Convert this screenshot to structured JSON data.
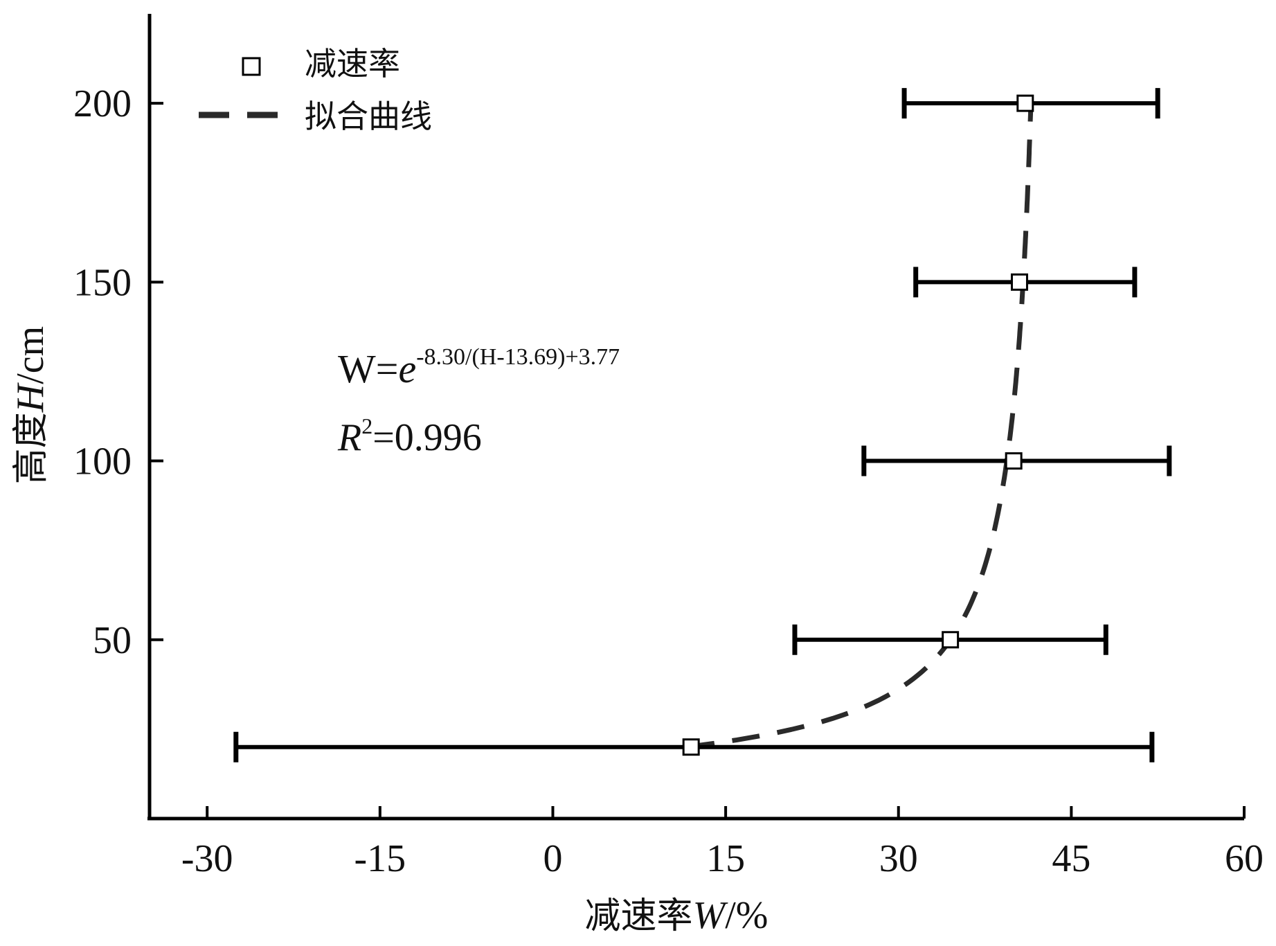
{
  "chart_data": {
    "type": "scatter",
    "title": "",
    "xlabel": "减速率W/%",
    "ylabel": "高度H/cm",
    "xlabel_parts": {
      "cjk": "减速率",
      "var": "W",
      "unit": "/%"
    },
    "ylabel_parts": {
      "cjk": "高度",
      "var": "H",
      "unit": "/cm"
    },
    "xlim": [
      -35,
      60
    ],
    "ylim": [
      0,
      225
    ],
    "x_ticks": [
      -30,
      -15,
      0,
      15,
      30,
      45,
      60
    ],
    "y_ticks": [
      50,
      100,
      150,
      200
    ],
    "grid": false,
    "legend_position": "top-left",
    "legend": [
      {
        "label": "减速率",
        "marker": "open-square"
      },
      {
        "label": "拟合曲线",
        "marker": "dashed-line"
      }
    ],
    "series": [
      {
        "name": "减速率",
        "kind": "points-with-x-errorbars",
        "points": [
          {
            "x": 12,
            "y": 20,
            "xerr_low": -27.5,
            "xerr_high": 52
          },
          {
            "x": 34.5,
            "y": 50,
            "xerr_low": 21,
            "xerr_high": 48
          },
          {
            "x": 40,
            "y": 100,
            "xerr_low": 27,
            "xerr_high": 53.5
          },
          {
            "x": 40.5,
            "y": 150,
            "xerr_low": 31.5,
            "xerr_high": 50.5
          },
          {
            "x": 41,
            "y": 200,
            "xerr_low": 30.5,
            "xerr_high": 52.5
          }
        ]
      },
      {
        "name": "拟合曲线",
        "kind": "dashed-curve",
        "equation": {
          "a": -8.3,
          "h0": 13.69,
          "b": 3.77
        },
        "h_range": [
          20,
          200
        ]
      }
    ],
    "annotations": {
      "equation_lhs": "W=",
      "equation_base": "e",
      "equation_exponent": "-8.30/(H-13.69)+3.77",
      "r2_var": "R",
      "r2_sup": "2",
      "r2_value": "=0.996"
    },
    "colors": {
      "axis": "#000000",
      "marker_fill": "#ffffff",
      "curve": "#2a2a2a",
      "errorbar": "#000000"
    }
  }
}
